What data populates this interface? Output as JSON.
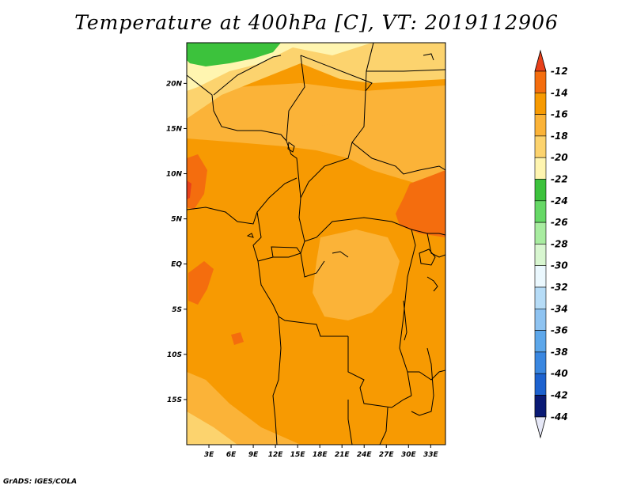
{
  "title": "Temperature at 400hPa [C], VT: 2019112906",
  "credit": "GrADS: IGES/COLA",
  "map": {
    "lon_range": [
      0,
      35
    ],
    "lat_range": [
      -20,
      24.5
    ],
    "lat_ticks": [
      "20N",
      "15N",
      "10N",
      "5N",
      "EQ",
      "5S",
      "10S",
      "15S"
    ],
    "lon_ticks": [
      "3E",
      "6E",
      "9E",
      "12E",
      "15E",
      "18E",
      "21E",
      "24E",
      "27E",
      "30E",
      "33E"
    ]
  },
  "colorbar": {
    "levels": [
      "-12",
      "-14",
      "-16",
      "-18",
      "-20",
      "-22",
      "-24",
      "-26",
      "-28",
      "-30",
      "-32",
      "-34",
      "-36",
      "-38",
      "-40",
      "-42",
      "-44"
    ],
    "colors": {
      "above_-12": "#e8401a",
      "-12_-14": "#f46d0e",
      "-14_-16": "#f79a02",
      "-16_-18": "#fbb338",
      "-18_-20": "#fcd36e",
      "-20_-22": "#fff5b0",
      "-22_-24": "#3cc23c",
      "-24_-26": "#66d866",
      "-26_-28": "#a8eca0",
      "-28_-30": "#d8f6d0",
      "-30_-32": "#ebf8fe",
      "-32_-34": "#b6dcf7",
      "-34_-36": "#8ec3f1",
      "-36_-38": "#5da7ea",
      "-38_-40": "#3a87e0",
      "-40_-42": "#1d62cf",
      "-42_-44": "#1442ae",
      "below_-44_a": "#0a1a75",
      "below_-44_b": "#e6e8f7"
    }
  }
}
